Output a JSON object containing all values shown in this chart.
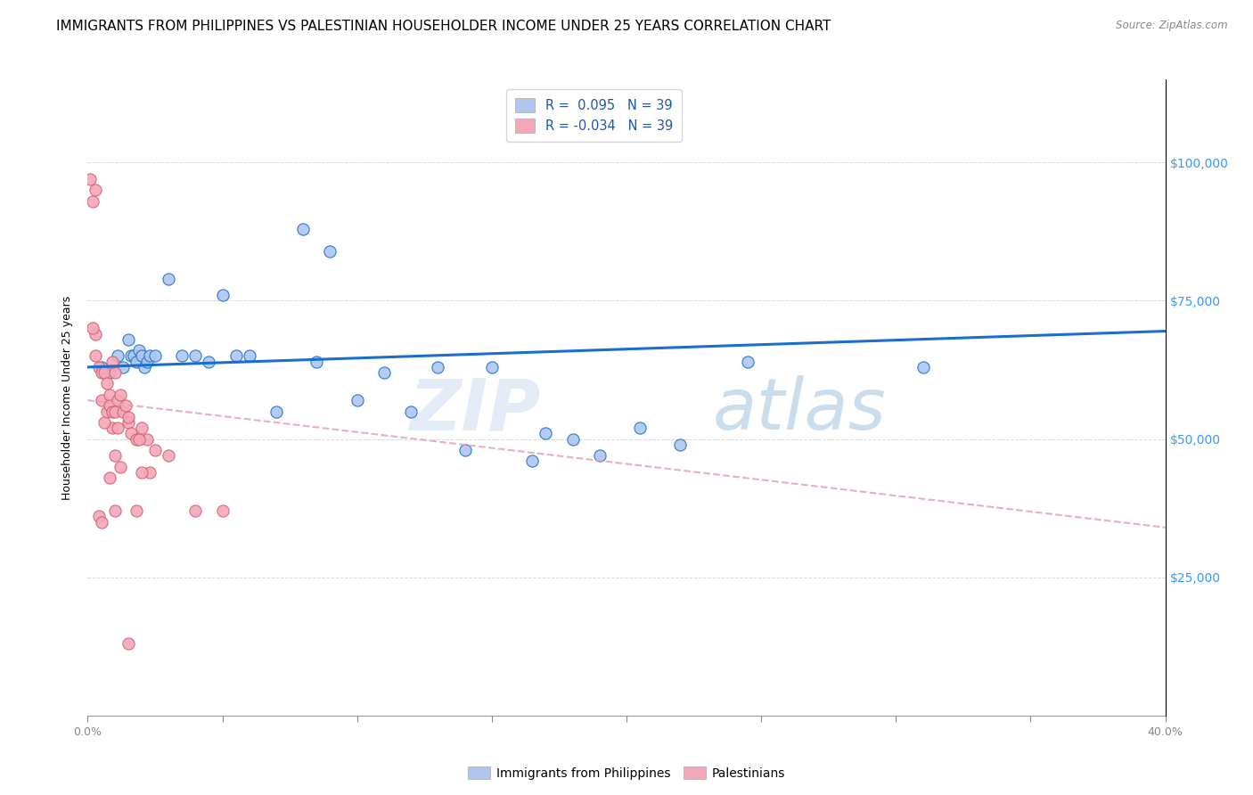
{
  "title": "IMMIGRANTS FROM PHILIPPINES VS PALESTINIAN HOUSEHOLDER INCOME UNDER 25 YEARS CORRELATION CHART",
  "source": "Source: ZipAtlas.com",
  "ylabel": "Householder Income Under 25 years",
  "ytick_labels": [
    "$25,000",
    "$50,000",
    "$75,000",
    "$100,000"
  ],
  "ytick_vals": [
    25000,
    50000,
    75000,
    100000
  ],
  "watermark": "ZIPatlas",
  "legend_blue_r": "0.095",
  "legend_pink_r": "-0.034",
  "legend_blue_n": "39",
  "legend_pink_n": "39",
  "blue_scatter_x": [
    0.5,
    0.8,
    1.1,
    1.3,
    1.5,
    1.6,
    1.7,
    1.8,
    1.9,
    2.0,
    2.1,
    2.2,
    2.3,
    2.5,
    3.0,
    3.5,
    4.0,
    4.5,
    5.0,
    5.5,
    6.0,
    7.0,
    8.0,
    8.5,
    9.0,
    10.0,
    11.0,
    12.0,
    13.0,
    14.0,
    15.0,
    16.5,
    17.0,
    18.0,
    19.0,
    20.5,
    22.0,
    24.5,
    31.0
  ],
  "blue_scatter_y": [
    63000,
    62000,
    65000,
    63000,
    68000,
    65000,
    65000,
    64000,
    66000,
    65000,
    63000,
    64000,
    65000,
    65000,
    79000,
    65000,
    65000,
    64000,
    76000,
    65000,
    65000,
    55000,
    88000,
    64000,
    84000,
    57000,
    62000,
    55000,
    63000,
    48000,
    63000,
    46000,
    51000,
    50000,
    47000,
    52000,
    49000,
    64000,
    63000
  ],
  "pink_scatter_x": [
    0.1,
    0.2,
    0.3,
    0.3,
    0.4,
    0.5,
    0.5,
    0.6,
    0.7,
    0.7,
    0.8,
    0.8,
    0.9,
    0.9,
    1.0,
    1.0,
    1.1,
    1.1,
    1.2,
    1.3,
    1.4,
    1.5,
    1.6,
    1.8,
    2.0,
    2.2,
    2.5,
    3.0,
    4.0,
    5.0,
    0.2,
    0.6,
    0.9,
    1.2,
    1.5,
    1.9,
    2.3,
    0.3,
    1.0
  ],
  "pink_scatter_y": [
    97000,
    93000,
    69000,
    65000,
    63000,
    62000,
    57000,
    62000,
    60000,
    55000,
    58000,
    56000,
    55000,
    52000,
    55000,
    62000,
    57000,
    52000,
    58000,
    55000,
    56000,
    53000,
    51000,
    50000,
    52000,
    50000,
    48000,
    47000,
    37000,
    37000,
    70000,
    53000,
    64000,
    45000,
    54000,
    50000,
    44000,
    95000,
    47000
  ],
  "pink_scatter_low_x": [
    0.8,
    2.0,
    1.0,
    1.8,
    0.4,
    0.5,
    1.5
  ],
  "pink_scatter_low_y": [
    43000,
    44000,
    37000,
    37000,
    36000,
    35000,
    13000
  ],
  "blue_line_x": [
    0.0,
    40.0
  ],
  "blue_line_y": [
    63000,
    69500
  ],
  "pink_line_x": [
    0.0,
    40.0
  ],
  "pink_line_y": [
    57000,
    34000
  ],
  "blue_scatter_color": "#aec6f0",
  "pink_scatter_color": "#f4a7b9",
  "blue_line_color": "#1a6fce",
  "pink_line_color": "#e8a0b0",
  "grid_color": "#d0d0d0",
  "background_color": "#ffffff",
  "title_fontsize": 11,
  "axis_label_fontsize": 9,
  "tick_fontsize": 9,
  "right_tick_color": "#3399ff",
  "scatter_size": 90,
  "xlim": [
    0,
    40
  ],
  "ylim": [
    0,
    115000
  ]
}
